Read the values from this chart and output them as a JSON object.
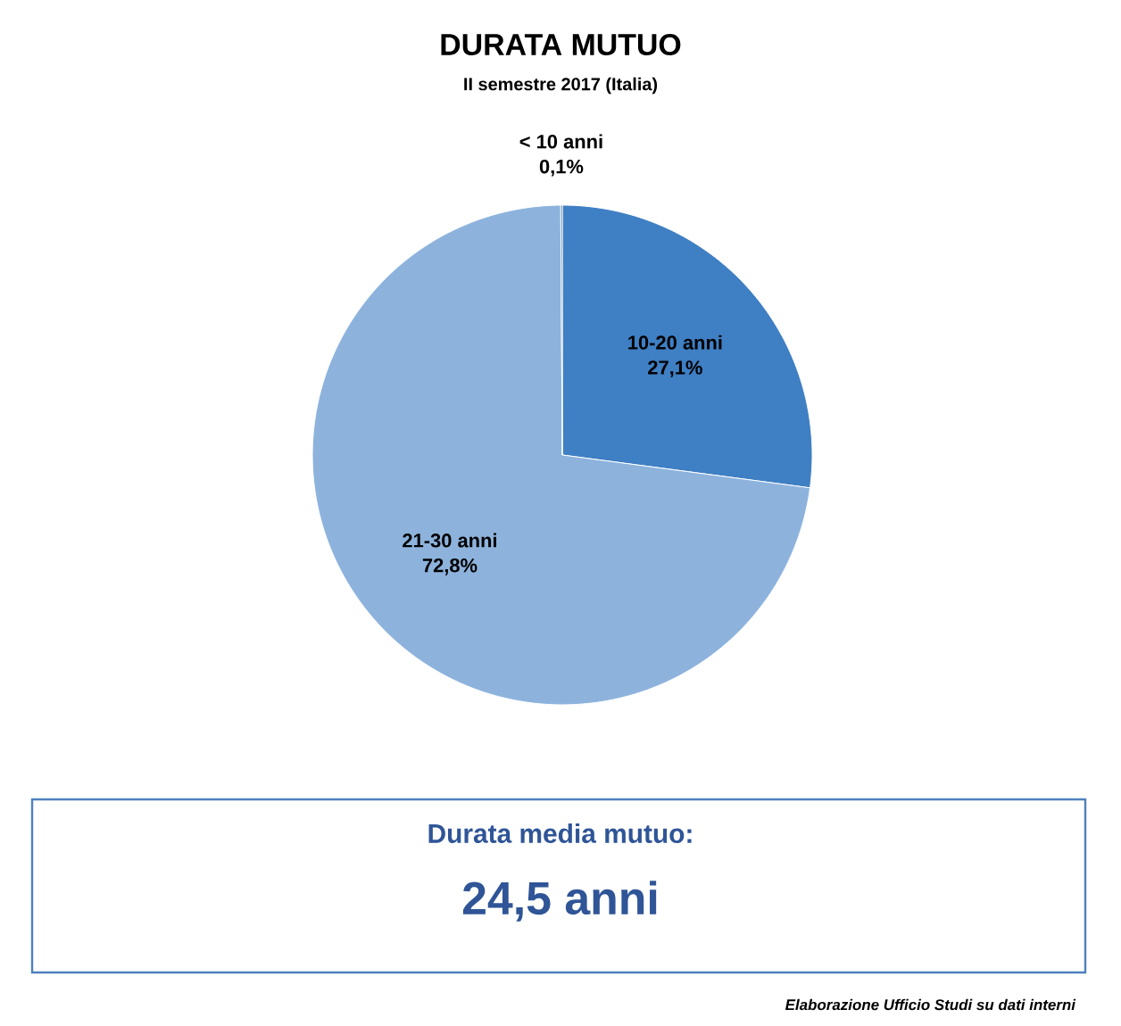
{
  "chart_data": {
    "type": "pie",
    "title": "DURATA MUTUO",
    "subtitle": "II semestre 2017 (Italia)",
    "categories": [
      "10-20 anni",
      "21-30 anni",
      "< 10 anni"
    ],
    "values": [
      27.1,
      72.8,
      0.1
    ],
    "value_labels": [
      "27,1%",
      "72,8%",
      "0,1%"
    ],
    "colors": [
      "#3f7fc4",
      "#8db3dd",
      "#1f4e79"
    ],
    "annotations": [
      "Durata media mutuo:",
      "24,5 anni",
      "Elaborazione Ufficio Studi su dati interni"
    ]
  }
}
